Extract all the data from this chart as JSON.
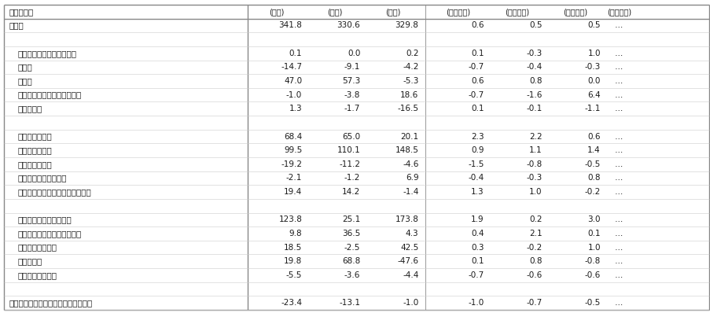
{
  "title_col": "前年同期差",
  "header_units_left": [
    "(千人)",
    "(千人)",
    "(千人)"
  ],
  "header_units_right": [
    "(ポイント)",
    "(ポイント)",
    "(ポイント)",
    "(ポイント)"
  ],
  "rows": [
    {
      "label": "産業計",
      "vals": [
        "341.8",
        "330.6",
        "329.8",
        "0.6",
        "0.5",
        "0.5",
        "…"
      ],
      "bold": true
    },
    {
      "label": "",
      "vals": [
        "",
        "",
        "",
        "",
        "",
        "",
        ""
      ],
      "bold": false
    },
    {
      "label": "鉱業，栗石業，砂利排取業",
      "vals": [
        "0.1",
        "0.0",
        "0.2",
        "0.1",
        "-0.3",
        "1.0",
        "…"
      ],
      "bold": false
    },
    {
      "label": "建設業",
      "vals": [
        "-14.7",
        "-9.1",
        "-4.2",
        "-0.7",
        "-0.4",
        "-0.3",
        "…"
      ],
      "bold": false
    },
    {
      "label": "製造業",
      "vals": [
        "47.0",
        "57.3",
        "-5.3",
        "0.6",
        "0.8",
        "0.0",
        "…"
      ],
      "bold": false
    },
    {
      "label": "電気・ガス・熱供給・水道業",
      "vals": [
        "-1.0",
        "-3.8",
        "18.6",
        "-0.7",
        "-1.6",
        "6.4",
        "…"
      ],
      "bold": false
    },
    {
      "label": "情報通信業",
      "vals": [
        "1.3",
        "-1.7",
        "-16.5",
        "0.1",
        "-0.1",
        "-1.1",
        "…"
      ],
      "bold": false
    },
    {
      "label": "",
      "vals": [
        "",
        "",
        "",
        "",
        "",
        "",
        ""
      ],
      "bold": false
    },
    {
      "label": "運輸業，郵便業",
      "vals": [
        "68.4",
        "65.0",
        "20.1",
        "2.3",
        "2.2",
        "0.6",
        "…"
      ],
      "bold": false
    },
    {
      "label": "卸売業，小売業",
      "vals": [
        "99.5",
        "110.1",
        "148.5",
        "0.9",
        "1.1",
        "1.4",
        "…"
      ],
      "bold": false
    },
    {
      "label": "金融業，保険業",
      "vals": [
        "-19.2",
        "-11.2",
        "-4.6",
        "-1.5",
        "-0.8",
        "-0.5",
        "…"
      ],
      "bold": false
    },
    {
      "label": "不動産業，物品賃貸業",
      "vals": [
        "-2.1",
        "-1.2",
        "6.9",
        "-0.4",
        "-0.3",
        "0.8",
        "…"
      ],
      "bold": false
    },
    {
      "label": "学術研究，専門・技術サービス業",
      "vals": [
        "19.4",
        "14.2",
        "-1.4",
        "1.3",
        "1.0",
        "-0.2",
        "…"
      ],
      "bold": false
    },
    {
      "label": "",
      "vals": [
        "",
        "",
        "",
        "",
        "",
        "",
        ""
      ],
      "bold": false
    },
    {
      "label": "宿泊業，飲食サービス業",
      "vals": [
        "123.8",
        "25.1",
        "173.8",
        "1.9",
        "0.2",
        "3.0",
        "…"
      ],
      "bold": false
    },
    {
      "label": "生活関連サービス業，娯楽業",
      "vals": [
        "9.8",
        "36.5",
        "4.3",
        "0.4",
        "2.1",
        "0.1",
        "…"
      ],
      "bold": false
    },
    {
      "label": "教育，学習支援業",
      "vals": [
        "18.5",
        "-2.5",
        "42.5",
        "0.3",
        "-0.2",
        "1.0",
        "…"
      ],
      "bold": false
    },
    {
      "label": "医療，福祉",
      "vals": [
        "19.8",
        "68.8",
        "-47.6",
        "0.1",
        "0.8",
        "-0.8",
        "…"
      ],
      "bold": false
    },
    {
      "label": "複合サービス事業",
      "vals": [
        "-5.5",
        "-3.6",
        "-4.4",
        "-0.7",
        "-0.6",
        "-0.6",
        "…"
      ],
      "bold": false
    },
    {
      "label": "",
      "vals": [
        "",
        "",
        "",
        "",
        "",
        "",
        ""
      ],
      "bold": false
    },
    {
      "label": "サービス業（他に分類されないもの）",
      "vals": [
        "-23.4",
        "-13.1",
        "-1.0",
        "-1.0",
        "-0.7",
        "-0.5",
        "…"
      ],
      "bold": false
    }
  ],
  "bg_color": "#ffffff",
  "text_color": "#1a1a1a",
  "border_color": "#888888"
}
